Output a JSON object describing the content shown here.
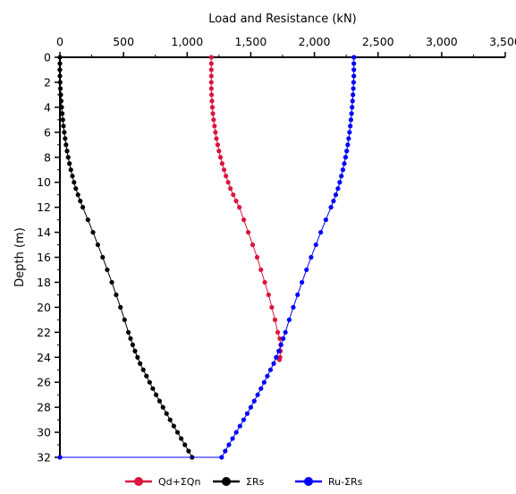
{
  "chart_data": {
    "type": "line",
    "title": "",
    "xlabel": "Load and Resistance (kN)",
    "ylabel": "Depth (m)",
    "x_axis_position": "top",
    "y_axis_inverted": true,
    "xlim": [
      0,
      3500
    ],
    "ylim": [
      0,
      32
    ],
    "x_ticks": [
      0,
      500,
      1000,
      1500,
      2000,
      2500,
      3000,
      3500
    ],
    "x_tick_labels": [
      "0",
      "500",
      "1,000",
      "1,500",
      "2,000",
      "2,500",
      "3,000",
      "3,500"
    ],
    "y_ticks": [
      0,
      2,
      4,
      6,
      8,
      10,
      12,
      14,
      16,
      18,
      20,
      22,
      24,
      26,
      28,
      30,
      32
    ],
    "y_tick_labels": [
      "0",
      "2",
      "4",
      "6",
      "8",
      "10",
      "12",
      "14",
      "16",
      "18",
      "20",
      "22",
      "24",
      "26",
      "28",
      "30",
      "32"
    ],
    "grid": false,
    "legend_position": "bottom",
    "series": [
      {
        "name": "Qd+ΣQn",
        "color": "#dc143c",
        "points": [
          [
            1190,
            0
          ],
          [
            1190,
            0.5
          ],
          [
            1190,
            1
          ],
          [
            1190,
            1.5
          ],
          [
            1190,
            2
          ],
          [
            1190,
            2.5
          ],
          [
            1192,
            3
          ],
          [
            1195,
            3.5
          ],
          [
            1198,
            4
          ],
          [
            1202,
            4.5
          ],
          [
            1208,
            5
          ],
          [
            1215,
            5.5
          ],
          [
            1222,
            6
          ],
          [
            1230,
            6.5
          ],
          [
            1240,
            7
          ],
          [
            1250,
            7.5
          ],
          [
            1262,
            8
          ],
          [
            1275,
            8.5
          ],
          [
            1290,
            9
          ],
          [
            1305,
            9.5
          ],
          [
            1322,
            10
          ],
          [
            1340,
            10.5
          ],
          [
            1362,
            11
          ],
          [
            1385,
            11.5
          ],
          [
            1410,
            12
          ],
          [
            1445,
            13
          ],
          [
            1480,
            14
          ],
          [
            1515,
            15
          ],
          [
            1550,
            16
          ],
          [
            1580,
            17
          ],
          [
            1610,
            18
          ],
          [
            1640,
            19
          ],
          [
            1665,
            20
          ],
          [
            1690,
            21
          ],
          [
            1712,
            22
          ],
          [
            1728,
            22.5
          ],
          [
            1735,
            23
          ],
          [
            1733,
            23.5
          ],
          [
            1730,
            24
          ],
          [
            1725,
            24.2
          ]
        ]
      },
      {
        "name": "ΣRs",
        "color": "#000000",
        "points": [
          [
            0,
            0
          ],
          [
            0,
            0.5
          ],
          [
            0,
            1
          ],
          [
            0,
            1.5
          ],
          [
            2,
            2
          ],
          [
            4,
            2.5
          ],
          [
            7,
            3
          ],
          [
            10,
            3.5
          ],
          [
            14,
            4
          ],
          [
            18,
            4.5
          ],
          [
            23,
            5
          ],
          [
            28,
            5.5
          ],
          [
            34,
            6
          ],
          [
            41,
            6.5
          ],
          [
            48,
            7
          ],
          [
            56,
            7.5
          ],
          [
            65,
            8
          ],
          [
            75,
            8.5
          ],
          [
            86,
            9
          ],
          [
            98,
            9.5
          ],
          [
            111,
            10
          ],
          [
            125,
            10.5
          ],
          [
            142,
            11
          ],
          [
            160,
            11.5
          ],
          [
            180,
            12
          ],
          [
            220,
            13
          ],
          [
            260,
            14
          ],
          [
            298,
            15
          ],
          [
            336,
            16
          ],
          [
            372,
            17
          ],
          [
            408,
            18
          ],
          [
            442,
            19
          ],
          [
            476,
            20
          ],
          [
            508,
            21
          ],
          [
            538,
            22
          ],
          [
            555,
            22.5
          ],
          [
            572,
            23
          ],
          [
            590,
            23.5
          ],
          [
            610,
            24
          ],
          [
            630,
            24.5
          ],
          [
            655,
            25
          ],
          [
            680,
            25.5
          ],
          [
            705,
            26
          ],
          [
            730,
            26.5
          ],
          [
            756,
            27
          ],
          [
            783,
            27.5
          ],
          [
            810,
            28
          ],
          [
            838,
            28.5
          ],
          [
            866,
            29
          ],
          [
            895,
            29.5
          ],
          [
            924,
            30
          ],
          [
            953,
            30.5
          ],
          [
            982,
            31
          ],
          [
            1011,
            31.5
          ],
          [
            1039,
            32
          ]
        ]
      },
      {
        "name": "Ru-ΣRs",
        "color": "#0000ff",
        "points": [
          [
            2310,
            0
          ],
          [
            2310,
            0.5
          ],
          [
            2310,
            1
          ],
          [
            2310,
            1.5
          ],
          [
            2308,
            2
          ],
          [
            2306,
            2.5
          ],
          [
            2303,
            3
          ],
          [
            2300,
            3.5
          ],
          [
            2296,
            4
          ],
          [
            2292,
            4.5
          ],
          [
            2287,
            5
          ],
          [
            2282,
            5.5
          ],
          [
            2276,
            6
          ],
          [
            2269,
            6.5
          ],
          [
            2262,
            7
          ],
          [
            2254,
            7.5
          ],
          [
            2245,
            8
          ],
          [
            2235,
            8.5
          ],
          [
            2224,
            9
          ],
          [
            2212,
            9.5
          ],
          [
            2199,
            10
          ],
          [
            2185,
            10.5
          ],
          [
            2168,
            11
          ],
          [
            2150,
            11.5
          ],
          [
            2130,
            12
          ],
          [
            2090,
            13
          ],
          [
            2050,
            14
          ],
          [
            2012,
            15
          ],
          [
            1974,
            16
          ],
          [
            1938,
            17
          ],
          [
            1902,
            18
          ],
          [
            1868,
            19
          ],
          [
            1834,
            20
          ],
          [
            1802,
            21
          ],
          [
            1772,
            22
          ],
          [
            1755,
            22.5
          ],
          [
            1738,
            23
          ],
          [
            1720,
            23.5
          ],
          [
            1700,
            24
          ],
          [
            1680,
            24.5
          ],
          [
            1655,
            25
          ],
          [
            1630,
            25.5
          ],
          [
            1605,
            26
          ],
          [
            1580,
            26.5
          ],
          [
            1554,
            27
          ],
          [
            1527,
            27.5
          ],
          [
            1500,
            28
          ],
          [
            1472,
            28.5
          ],
          [
            1444,
            29
          ],
          [
            1415,
            29.5
          ],
          [
            1386,
            30
          ],
          [
            1357,
            30.5
          ],
          [
            1328,
            31
          ],
          [
            1299,
            31.5
          ],
          [
            1271,
            32
          ],
          [
            0,
            32
          ]
        ]
      }
    ]
  }
}
